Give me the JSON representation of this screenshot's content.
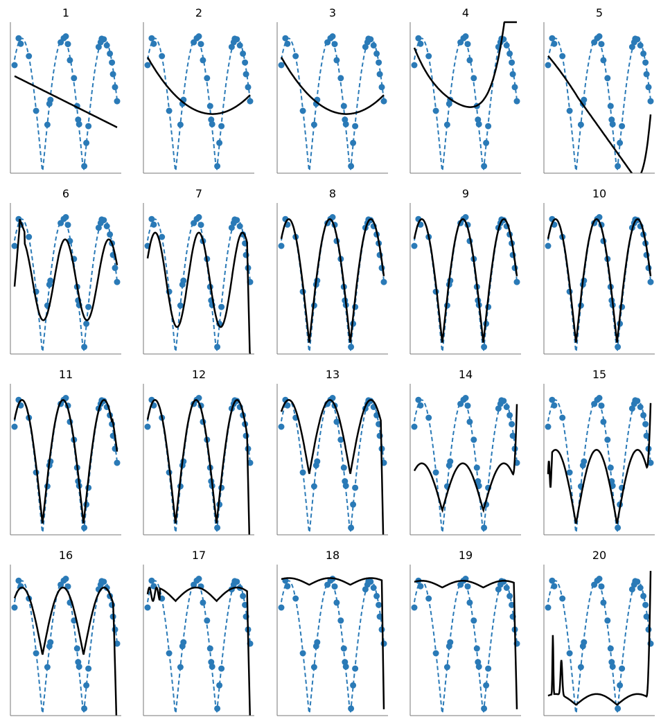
{
  "figure": {
    "rows": 4,
    "cols": 5,
    "colors": {
      "true_curve": "#2a7ab7",
      "points": "#2a7ab7",
      "fit": "#000000",
      "axis": "#777777"
    }
  },
  "panel_titles": [
    "1",
    "2",
    "3",
    "4",
    "5",
    "6",
    "7",
    "8",
    "9",
    "10",
    "11",
    "12",
    "13",
    "14",
    "15",
    "16",
    "17",
    "18",
    "19",
    "20"
  ],
  "chart_data": {
    "type": "line",
    "description_of_encoding": "",
    "samples_x": [
      0.0,
      0.04,
      0.06,
      0.14,
      0.21,
      0.32,
      0.34,
      0.35,
      0.45,
      0.48,
      0.5,
      0.52,
      0.54,
      0.58,
      0.61,
      0.62,
      0.63,
      0.68,
      0.7,
      0.72,
      0.82,
      0.84,
      0.85,
      0.87,
      0.9,
      0.93,
      0.95,
      0.96,
      0.98,
      1.0
    ],
    "truth": "abs_sin",
    "fits": [
      {
        "panel": "1",
        "y": [
          0.74,
          0.55,
          0.33
        ]
      },
      {
        "panel": "2"
      },
      {
        "panel": "3"
      },
      {
        "panel": "4"
      },
      {
        "panel": "5"
      },
      {
        "panel": "6"
      },
      {
        "panel": "7"
      },
      {
        "panel": "8"
      },
      {
        "panel": "9"
      },
      {
        "panel": "10"
      },
      {
        "panel": "11"
      },
      {
        "panel": "12"
      },
      {
        "panel": "13"
      },
      {
        "panel": "14"
      },
      {
        "panel": "15"
      },
      {
        "panel": "16"
      },
      {
        "panel": "17"
      },
      {
        "panel": "18"
      },
      {
        "panel": "19"
      },
      {
        "panel": "20"
      }
    ]
  }
}
